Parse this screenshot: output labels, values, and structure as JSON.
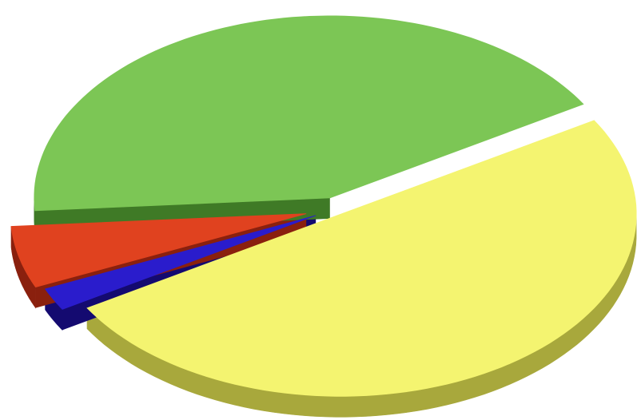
{
  "chart_data": {
    "type": "pie",
    "style": "3d-exploded",
    "title": "",
    "legend": "none",
    "labels": "none",
    "slices": [
      {
        "value": 50.0,
        "color": "#f4f470",
        "side_color": "#a8a83c"
      },
      {
        "value": 2.0,
        "color": "#2a1ccc",
        "side_color": "#140a70"
      },
      {
        "value": 5.5,
        "color": "#e0421f",
        "side_color": "#8a200e"
      },
      {
        "value": 42.5,
        "color": "#7cc655",
        "side_color": "#3f7a26"
      }
    ]
  }
}
